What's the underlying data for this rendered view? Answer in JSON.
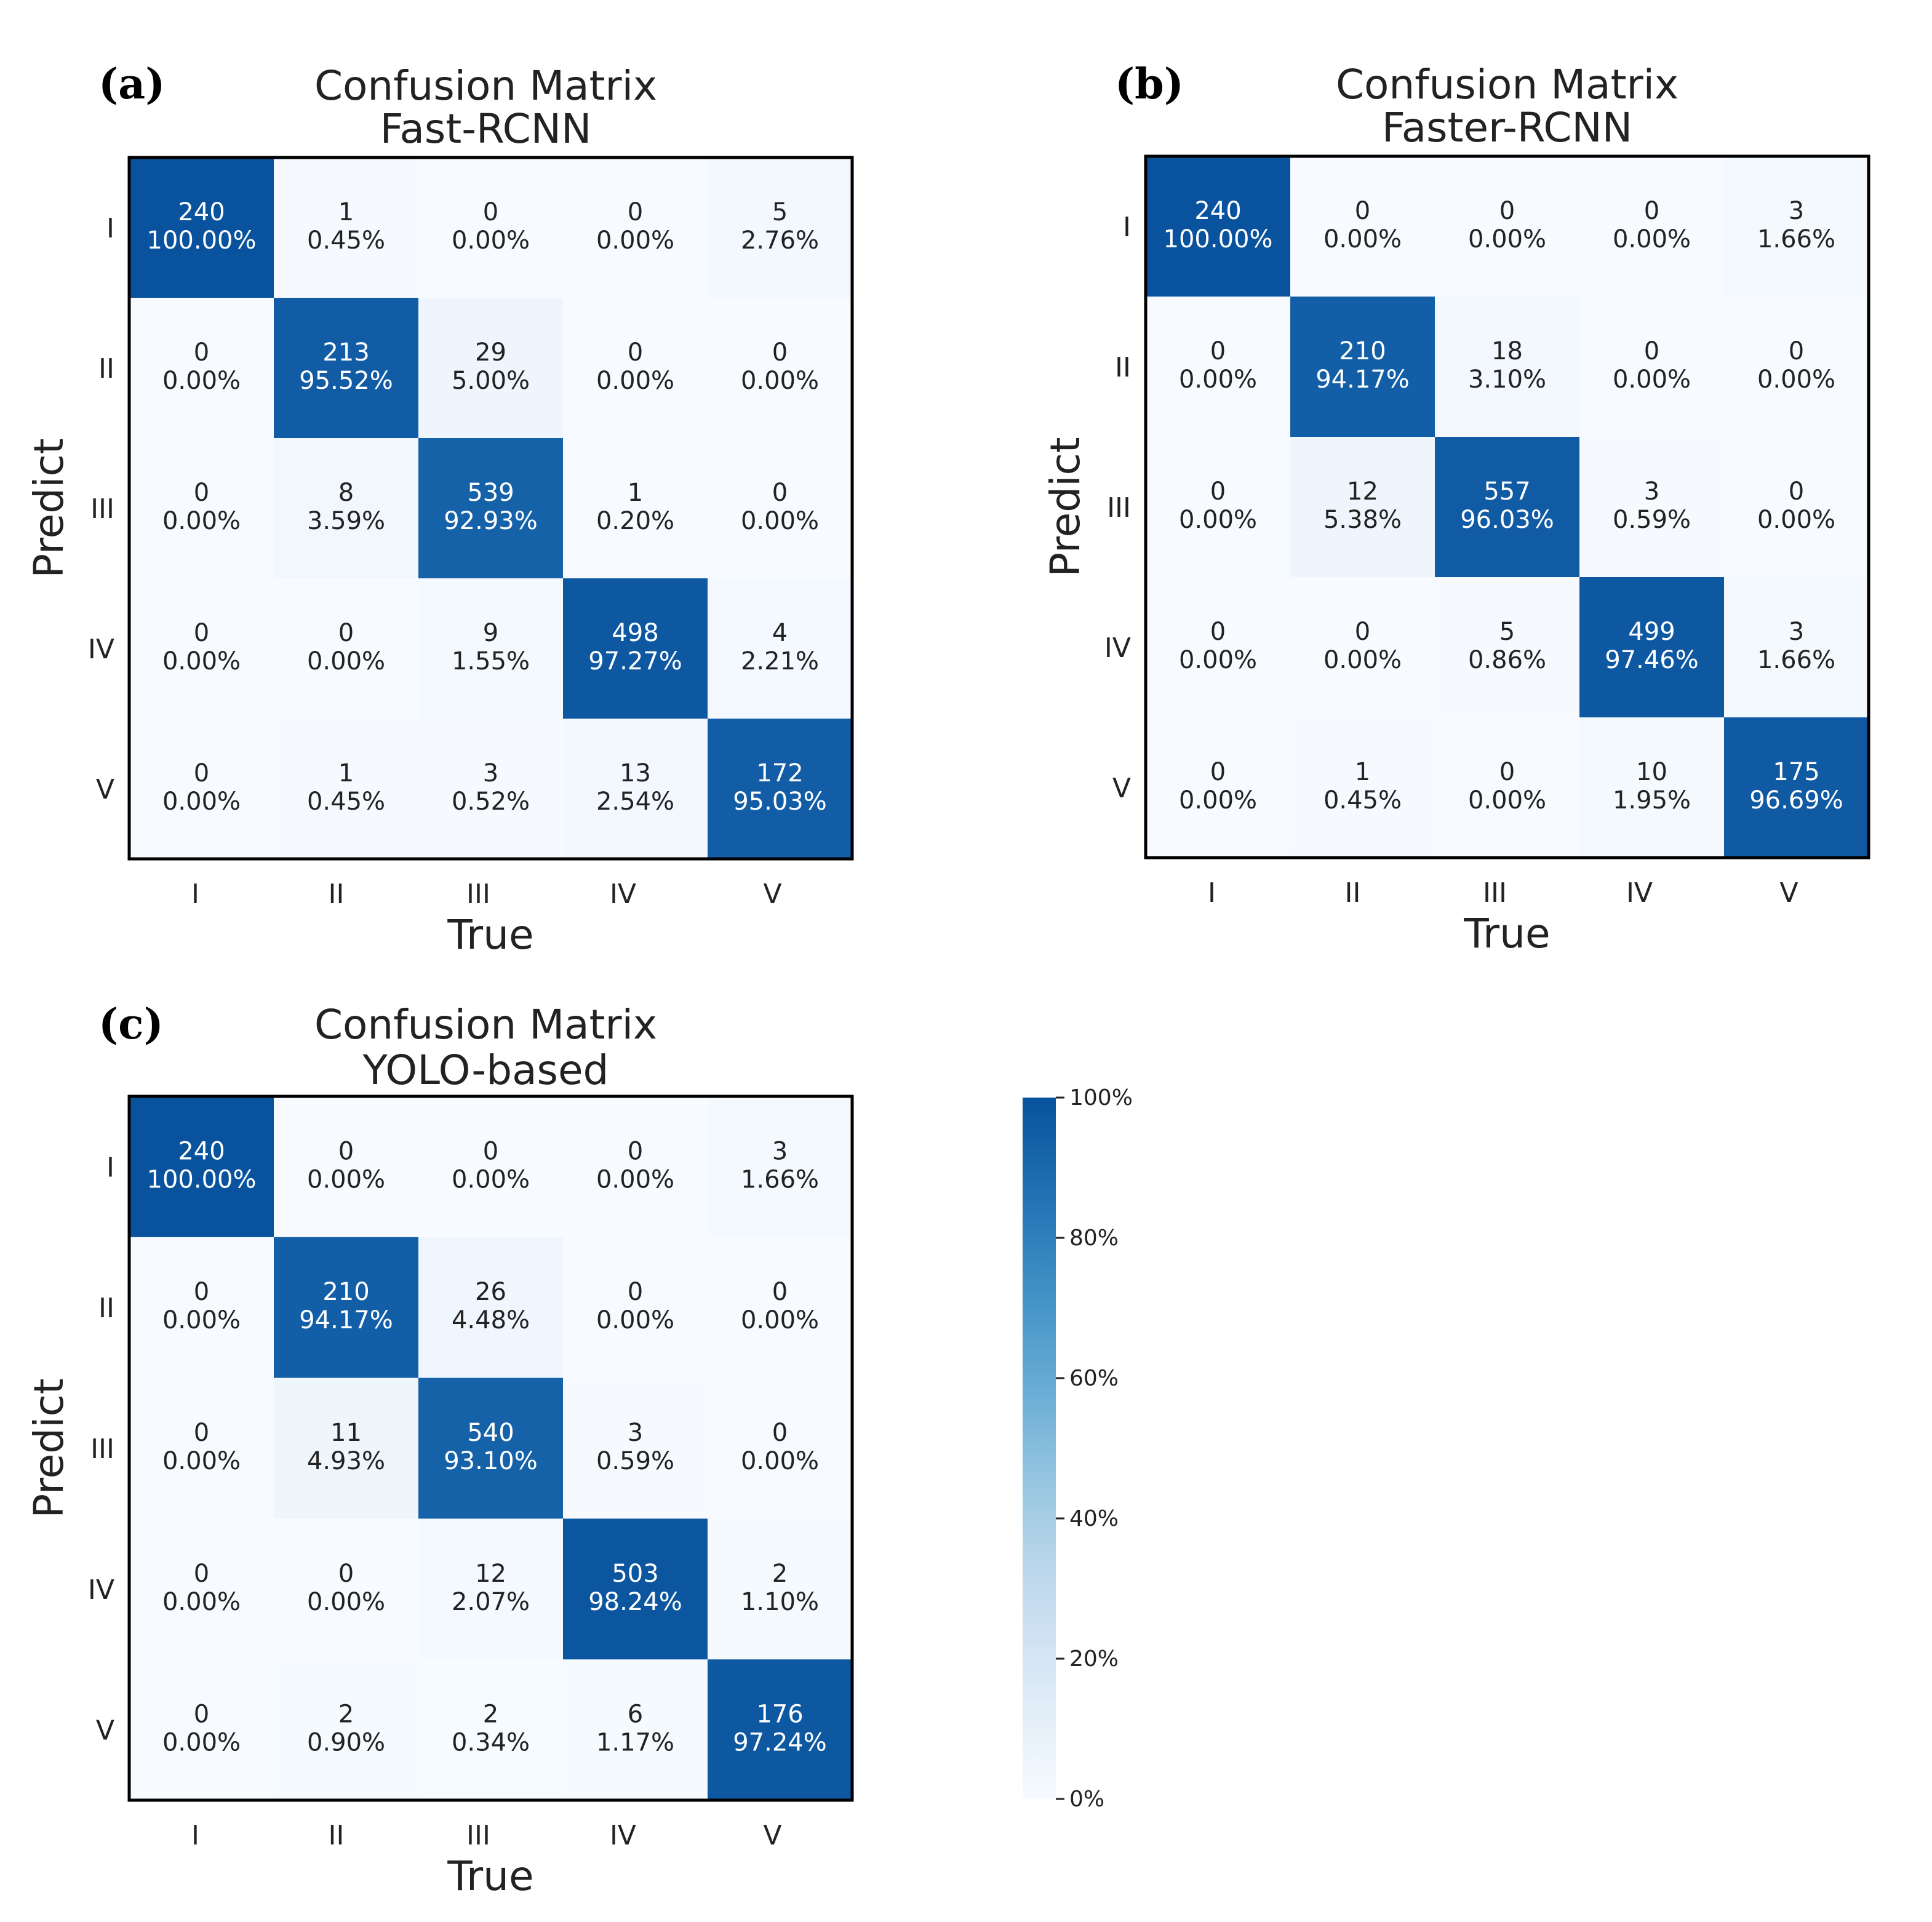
{
  "chart_data": [
    {
      "type": "heatmap",
      "panel": "(a)",
      "title_line1": "Confusion Matrix",
      "title_line2": "Fast-RCNN",
      "xlabel": "True",
      "ylabel": "Predict",
      "categories": [
        "I",
        "II",
        "III",
        "IV",
        "V"
      ],
      "counts": [
        [
          240,
          1,
          0,
          0,
          5
        ],
        [
          0,
          213,
          29,
          0,
          0
        ],
        [
          0,
          8,
          539,
          1,
          0
        ],
        [
          0,
          0,
          9,
          498,
          4
        ],
        [
          0,
          1,
          3,
          13,
          172
        ]
      ],
      "percents": [
        [
          "100.00%",
          "0.45%",
          "0.00%",
          "0.00%",
          "2.76%"
        ],
        [
          "0.00%",
          "95.52%",
          "5.00%",
          "0.00%",
          "0.00%"
        ],
        [
          "0.00%",
          "3.59%",
          "92.93%",
          "0.20%",
          "0.00%"
        ],
        [
          "0.00%",
          "0.00%",
          "1.55%",
          "97.27%",
          "2.21%"
        ],
        [
          "0.00%",
          "0.45%",
          "0.52%",
          "2.54%",
          "95.03%"
        ]
      ]
    },
    {
      "type": "heatmap",
      "panel": "(b)",
      "title_line1": "Confusion Matrix",
      "title_line2": "Faster-RCNN",
      "xlabel": "True",
      "ylabel": "Predict",
      "categories": [
        "I",
        "II",
        "III",
        "IV",
        "V"
      ],
      "counts": [
        [
          240,
          0,
          0,
          0,
          3
        ],
        [
          0,
          210,
          18,
          0,
          0
        ],
        [
          0,
          12,
          557,
          3,
          0
        ],
        [
          0,
          0,
          5,
          499,
          3
        ],
        [
          0,
          1,
          0,
          10,
          175
        ]
      ],
      "percents": [
        [
          "100.00%",
          "0.00%",
          "0.00%",
          "0.00%",
          "1.66%"
        ],
        [
          "0.00%",
          "94.17%",
          "3.10%",
          "0.00%",
          "0.00%"
        ],
        [
          "0.00%",
          "5.38%",
          "96.03%",
          "0.59%",
          "0.00%"
        ],
        [
          "0.00%",
          "0.00%",
          "0.86%",
          "97.46%",
          "1.66%"
        ],
        [
          "0.00%",
          "0.45%",
          "0.00%",
          "1.95%",
          "96.69%"
        ]
      ]
    },
    {
      "type": "heatmap",
      "panel": "(c)",
      "title_line1": "Confusion Matrix",
      "title_line2": "YOLO-based",
      "xlabel": "True",
      "ylabel": "Predict",
      "categories": [
        "I",
        "II",
        "III",
        "IV",
        "V"
      ],
      "counts": [
        [
          240,
          0,
          0,
          0,
          3
        ],
        [
          0,
          210,
          26,
          0,
          0
        ],
        [
          0,
          11,
          540,
          3,
          0
        ],
        [
          0,
          0,
          12,
          503,
          2
        ],
        [
          0,
          2,
          2,
          6,
          176
        ]
      ],
      "percents": [
        [
          "100.00%",
          "0.00%",
          "0.00%",
          "0.00%",
          "1.66%"
        ],
        [
          "0.00%",
          "94.17%",
          "4.48%",
          "0.00%",
          "0.00%"
        ],
        [
          "0.00%",
          "4.93%",
          "93.10%",
          "0.59%",
          "0.00%"
        ],
        [
          "0.00%",
          "0.00%",
          "2.07%",
          "98.24%",
          "1.10%"
        ],
        [
          "0.00%",
          "0.90%",
          "0.34%",
          "1.17%",
          "97.24%"
        ]
      ]
    }
  ],
  "colorbar": {
    "ticks": [
      "0%",
      "20%",
      "40%",
      "60%",
      "80%",
      "100%"
    ],
    "range": [
      0,
      100
    ],
    "colormap": "Blues"
  }
}
